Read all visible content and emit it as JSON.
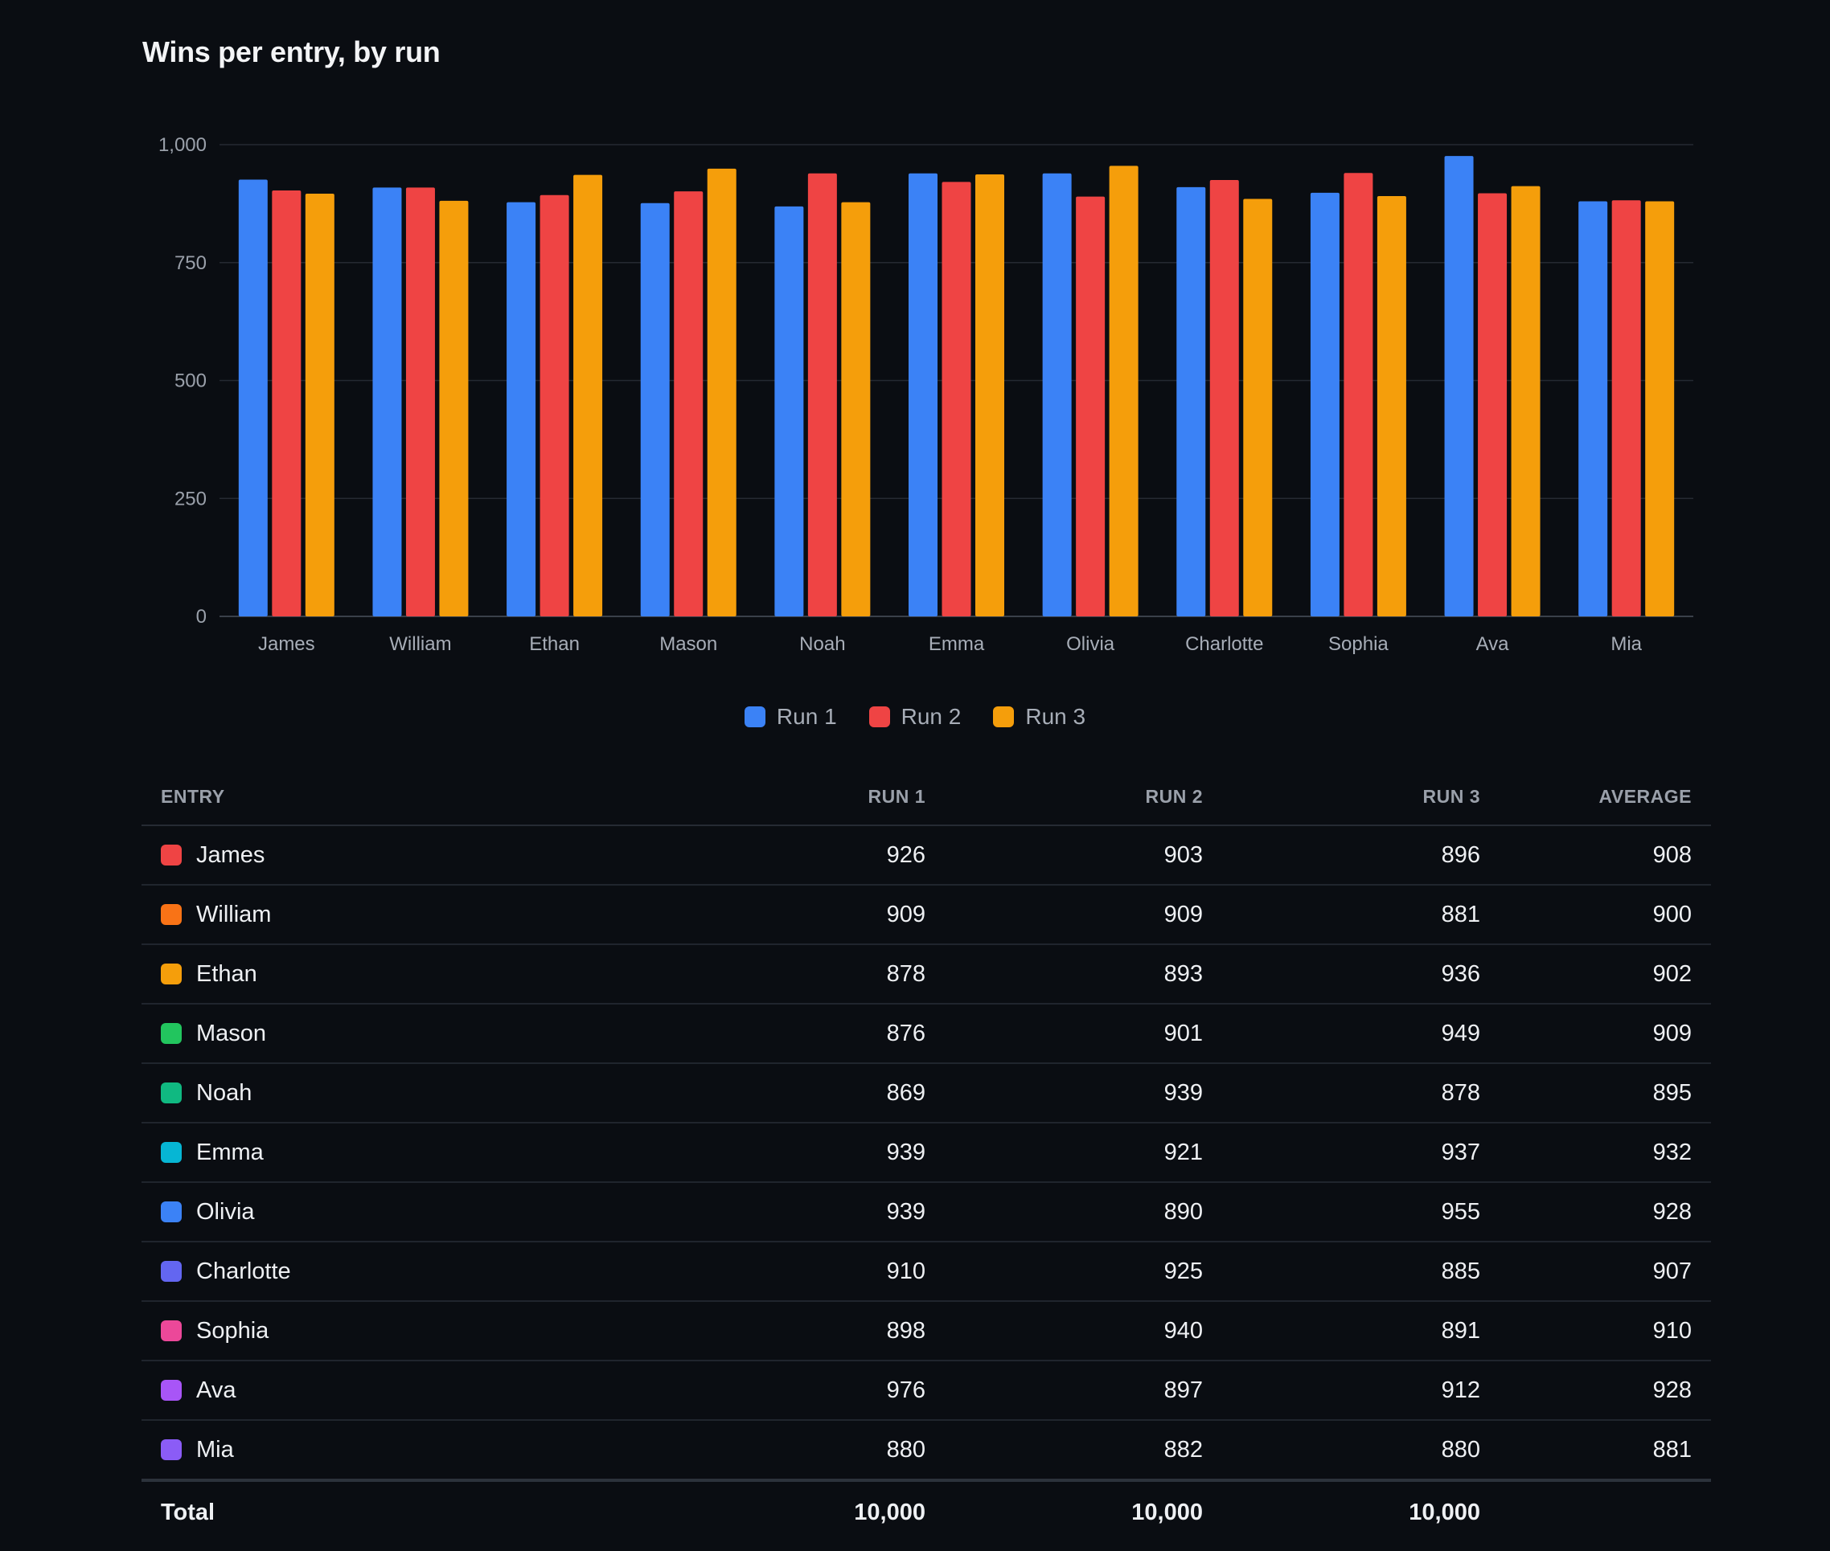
{
  "title": "Wins per entry, by run",
  "chart_data": {
    "type": "bar",
    "title": "Wins per entry, by run",
    "xlabel": "",
    "ylabel": "",
    "ylim": [
      0,
      1000
    ],
    "yticks": [
      0,
      250,
      500,
      750,
      1000
    ],
    "ytick_labels": [
      "0",
      "250",
      "500",
      "750",
      "1,000"
    ],
    "grid": true,
    "legend_position": "bottom-center",
    "categories": [
      "James",
      "William",
      "Ethan",
      "Mason",
      "Noah",
      "Emma",
      "Olivia",
      "Charlotte",
      "Sophia",
      "Ava",
      "Mia"
    ],
    "series": [
      {
        "name": "Run 1",
        "color": "#3b82f6",
        "values": [
          926,
          909,
          878,
          876,
          869,
          939,
          939,
          910,
          898,
          976,
          880
        ]
      },
      {
        "name": "Run 2",
        "color": "#ef4444",
        "values": [
          903,
          909,
          893,
          901,
          939,
          921,
          890,
          925,
          940,
          897,
          882
        ]
      },
      {
        "name": "Run 3",
        "color": "#f59e0b",
        "values": [
          896,
          881,
          936,
          949,
          878,
          937,
          955,
          885,
          891,
          912,
          880
        ]
      }
    ]
  },
  "legend": [
    {
      "label": "Run 1",
      "color": "#3b82f6"
    },
    {
      "label": "Run 2",
      "color": "#ef4444"
    },
    {
      "label": "Run 3",
      "color": "#f59e0b"
    }
  ],
  "table": {
    "headers": {
      "entry": "ENTRY",
      "run1": "RUN 1",
      "run2": "RUN 2",
      "run3": "RUN 3",
      "average": "AVERAGE"
    },
    "rows": [
      {
        "entry": "James",
        "color": "#ef4444",
        "run1": "926",
        "run2": "903",
        "run3": "896",
        "average": "908"
      },
      {
        "entry": "William",
        "color": "#f97316",
        "run1": "909",
        "run2": "909",
        "run3": "881",
        "average": "900"
      },
      {
        "entry": "Ethan",
        "color": "#f59e0b",
        "run1": "878",
        "run2": "893",
        "run3": "936",
        "average": "902"
      },
      {
        "entry": "Mason",
        "color": "#22c55e",
        "run1": "876",
        "run2": "901",
        "run3": "949",
        "average": "909"
      },
      {
        "entry": "Noah",
        "color": "#10b981",
        "run1": "869",
        "run2": "939",
        "run3": "878",
        "average": "895"
      },
      {
        "entry": "Emma",
        "color": "#06b6d4",
        "run1": "939",
        "run2": "921",
        "run3": "937",
        "average": "932"
      },
      {
        "entry": "Olivia",
        "color": "#3b82f6",
        "run1": "939",
        "run2": "890",
        "run3": "955",
        "average": "928"
      },
      {
        "entry": "Charlotte",
        "color": "#6366f1",
        "run1": "910",
        "run2": "925",
        "run3": "885",
        "average": "907"
      },
      {
        "entry": "Sophia",
        "color": "#ec4899",
        "run1": "898",
        "run2": "940",
        "run3": "891",
        "average": "910"
      },
      {
        "entry": "Ava",
        "color": "#a855f7",
        "run1": "976",
        "run2": "897",
        "run3": "912",
        "average": "928"
      },
      {
        "entry": "Mia",
        "color": "#8b5cf6",
        "run1": "880",
        "run2": "882",
        "run3": "880",
        "average": "881"
      }
    ],
    "total": {
      "label": "Total",
      "run1": "10,000",
      "run2": "10,000",
      "run3": "10,000",
      "average": ""
    }
  }
}
